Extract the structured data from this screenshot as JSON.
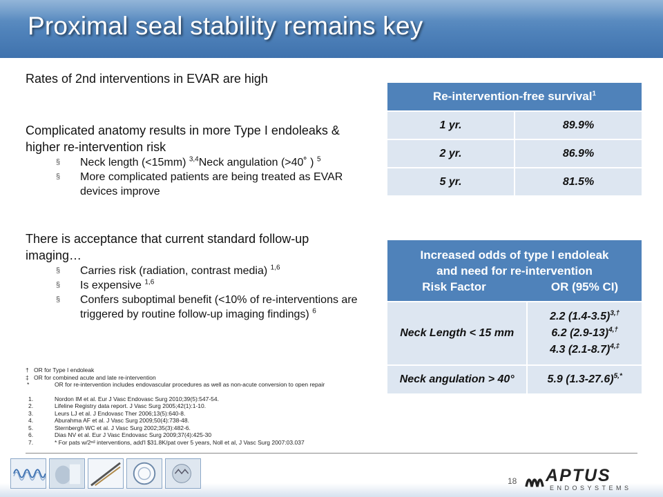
{
  "title": "Proximal seal stability remains key",
  "left": {
    "p1": "Rates of 2nd interventions in EVAR are high",
    "p2": "Complicated anatomy results in more Type I endoleaks & higher re-intervention risk",
    "p2_bullets": [
      {
        "a": "Neck length (<15mm) ",
        "s1": "3,4",
        "b": "Neck angulation (>40˚ ) ",
        "s2": "5"
      },
      {
        "text": "More complicated patients are being treated as EVAR devices improve"
      }
    ],
    "p3": "There is acceptance that current standard follow-up imaging…",
    "p3_bullets": [
      {
        "text": "Carries risk (radiation, contrast media) ",
        "sup": "1,6"
      },
      {
        "text": "Is expensive ",
        "sup": "1,6"
      },
      {
        "text": "Confers suboptimal benefit (<10% of re-interventions are triggered by routine follow-up imaging findings) ",
        "sup": "6"
      }
    ],
    "bullet_marker": "§"
  },
  "table1": {
    "header": "Re-intervention-free survival",
    "header_sup": "1",
    "rows": [
      {
        "label": "1 yr.",
        "value": "89.9%"
      },
      {
        "label": "2 yr.",
        "value": "86.9%"
      },
      {
        "label": "5 yr.",
        "value": "81.5%"
      }
    ]
  },
  "table2": {
    "header_line1": "Increased odds of type I endoleak",
    "header_line2": "and need for re-intervention",
    "col1": "Risk Factor",
    "col2": "OR (95% CI)",
    "row1_label": "Neck Length < 15 mm",
    "row1_values": [
      {
        "v": "2.2 (1.4-3.5)",
        "s": "3,†"
      },
      {
        "v": "6.2 (2.9-13)",
        "s": "4,†"
      },
      {
        "v": "4.3 (2.1-8.7)",
        "s": "4,‡"
      }
    ],
    "row2_label": "Neck angulation > 40°",
    "row2_value": "5.9 (1.3-27.6)",
    "row2_sup": "5,*"
  },
  "footnotes": [
    {
      "sym": "†",
      "text": "OR for Type I endoleak"
    },
    {
      "sym": "‡",
      "text": "OR for combined acute and late re-intervention"
    },
    {
      "sym": "*",
      "text": "OR for re-intervention includes endovascular procedures as well as non-acute conversion to open repair"
    }
  ],
  "references": [
    {
      "n": "1.",
      "text": "Nordon IM et al. Eur J Vasc Endovasc Surg 2010;39(5):547-54."
    },
    {
      "n": "2.",
      "text": "Lifeline Registry data report. J Vasc Surg 2005;42(1):1-10."
    },
    {
      "n": "3.",
      "text": "Leurs LJ et al. J Endovasc Ther 2006;13(5):640-8."
    },
    {
      "n": "4.",
      "text": "Aburahma AF et al. J Vasc Surg 2009;50(4):738-48."
    },
    {
      "n": "5.",
      "text": "Sternbergh WC et al. J Vasc Surg 2002;35(3):482-6."
    },
    {
      "n": "6.",
      "text": "Dias NV et al. Eur J Vasc Endovasc Surg 2009;37(4):425-30"
    },
    {
      "n": "7.",
      "text": "* For pats w/2ⁿᵈ interventions, add'l $31.8K/pat over 5 years, Noll et al, J Vasc Surg 2007:03.037"
    }
  ],
  "page_number": "18",
  "logo": {
    "name": "APTUS",
    "sub": "ENDOSYSTEMS"
  },
  "colors": {
    "accent": "#4f82ba",
    "cell": "#dde6f1"
  }
}
